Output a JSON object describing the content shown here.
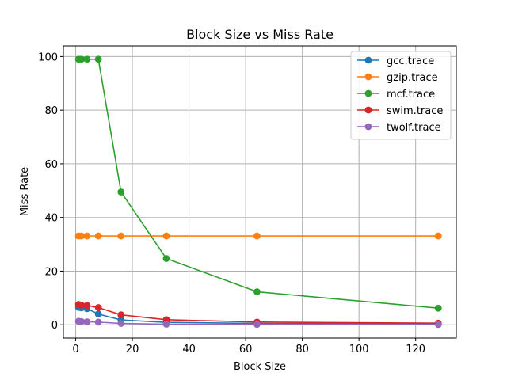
{
  "chart_data": {
    "type": "line",
    "title": "Block Size vs Miss Rate",
    "xlabel": "Block Size",
    "ylabel": "Miss Rate",
    "xlim": [
      -4.35,
      134.35
    ],
    "ylim": [
      -4.95,
      103.95
    ],
    "xticks": [
      0,
      20,
      40,
      60,
      80,
      100,
      120
    ],
    "yticks": [
      0,
      20,
      40,
      60,
      80,
      100
    ],
    "grid": true,
    "legend_position": "top-right",
    "x": [
      1,
      2,
      4,
      8,
      16,
      32,
      64,
      128
    ],
    "series": [
      {
        "name": "gcc.trace",
        "color": "#1f77b4",
        "values": [
          6.5,
          6.3,
          6.0,
          4.0,
          1.8,
          0.9,
          0.5,
          0.3
        ]
      },
      {
        "name": "gzip.trace",
        "color": "#ff7f0e",
        "values": [
          33.1,
          33.1,
          33.1,
          33.1,
          33.1,
          33.1,
          33.1,
          33.1
        ]
      },
      {
        "name": "mcf.trace",
        "color": "#2ca02c",
        "values": [
          99.0,
          99.0,
          99.0,
          99.0,
          49.5,
          24.7,
          12.3,
          6.2
        ]
      },
      {
        "name": "swim.trace",
        "color": "#d62728",
        "values": [
          7.6,
          7.3,
          7.2,
          6.4,
          3.7,
          1.9,
          1.0,
          0.6
        ]
      },
      {
        "name": "twolf.trace",
        "color": "#9467bd",
        "values": [
          1.3,
          1.2,
          1.1,
          1.0,
          0.5,
          0.2,
          0.15,
          0.1
        ]
      }
    ]
  }
}
